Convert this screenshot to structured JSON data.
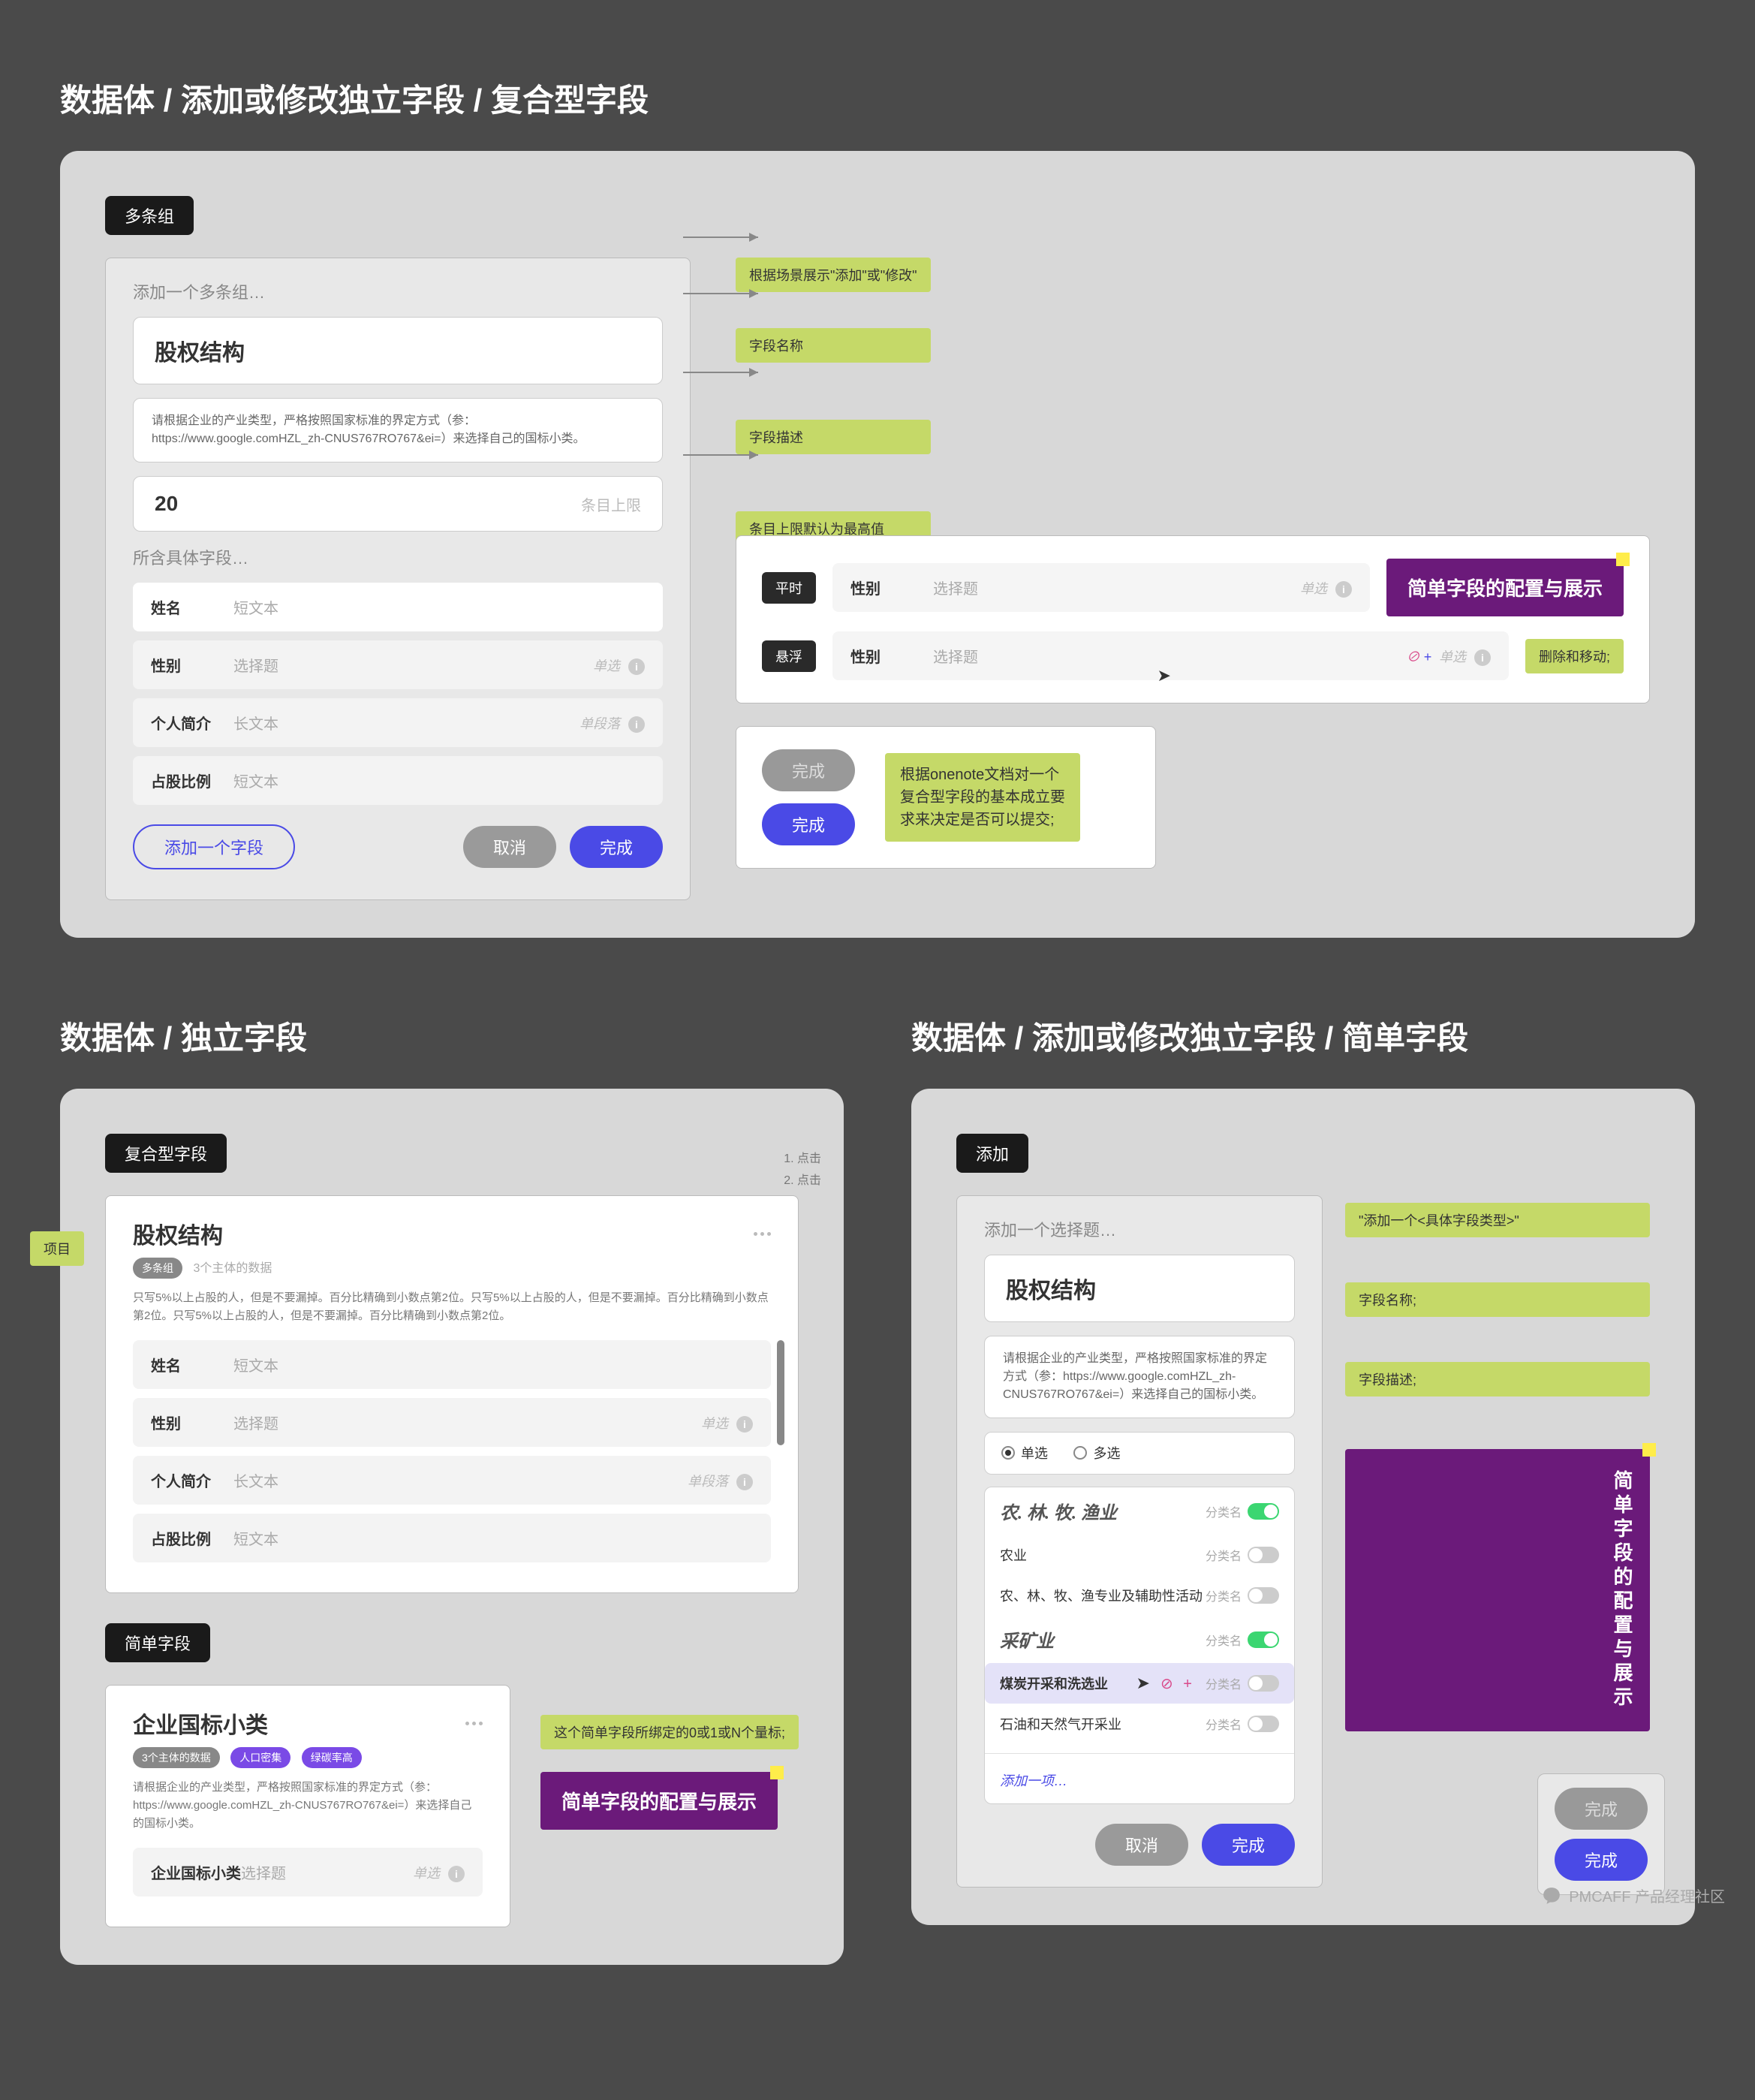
{
  "colors": {
    "bg": "#4a4a4a",
    "panel": "#d8d8d8",
    "accent": "#4a4ae6",
    "annot": "#c5d968",
    "purple": "#6b1a7a",
    "green": "#3bd671"
  },
  "footer": "PMCAFF 产品经理社区",
  "section1": {
    "title": "数据体 / 添加或修改独立字段 / 复合型字段",
    "chip": "多条组",
    "crumb": "添加一个多条组…",
    "name": "股权结构",
    "desc": "请根据企业的产业类型，严格按照国家标准的界定方式（参：https://www.google.comHZL_zh-CNUS767RO767&ei=）来选择自己的国标小类。",
    "limitValue": "20",
    "limitHint": "条目上限",
    "ann_crumb": "根据场景展示\"添加\"或\"修改\"",
    "ann_name": "字段名称",
    "ann_desc": "字段描述",
    "ann_limit": "条目上限默认为最高值",
    "subLabel": "所含具体字段…",
    "fields": [
      {
        "name": "姓名",
        "type": "短文本",
        "sel": true,
        "tag": ""
      },
      {
        "name": "性别",
        "type": "选择题",
        "tag": "单选"
      },
      {
        "name": "个人简介",
        "type": "长文本",
        "tag": "单段落"
      },
      {
        "name": "占股比例",
        "type": "短文本",
        "tag": ""
      }
    ],
    "addFieldBtn": "添加一个字段",
    "cancelBtn": "取消",
    "doneBtn": "完成",
    "stateNormal": "平时",
    "stateHover": "悬浮",
    "rightFieldName": "性别",
    "rightFieldType": "选择题",
    "rightTag": "单选",
    "purpleLabel": "简单字段的配置与展示",
    "annDelete": "删除和移动;",
    "doneDisabled": "完成",
    "doneEnabled": "完成",
    "annDone": "根据onenote文档对一个复合型字段的基本成立要求来决定是否可以提交;"
  },
  "section2": {
    "title": "数据体 / 独立字段",
    "chip1": "复合型字段",
    "cardTitle1": "股权结构",
    "pill1": "多条组",
    "pill1b": "3个主体的数据",
    "cardDesc1": "只写5%以上占股的人，但是不要漏掉。百分比精确到小数点第2位。只写5%以上占股的人，但是不要漏掉。百分比精确到小数点第2位。只写5%以上占股的人，但是不要漏掉。百分比精确到小数点第2位。",
    "fields": [
      {
        "name": "姓名",
        "type": "短文本",
        "tag": ""
      },
      {
        "name": "性别",
        "type": "选择题",
        "tag": "单选"
      },
      {
        "name": "个人简介",
        "type": "长文本",
        "tag": "单段落"
      },
      {
        "name": "占股比例",
        "type": "短文本",
        "tag": ""
      }
    ],
    "annEdge": "项目",
    "annSide1": "1. 点击",
    "annSide2": "2. 点击",
    "chip2": "简单字段",
    "cardTitle2": "企业国标小类",
    "pill2a": "3个主体的数据",
    "pill2b": "人口密集",
    "pill2c": "绿碳率高",
    "cardDesc2": "请根据企业的产业类型，严格按照国家标准的界定方式（参：https://www.google.comHZL_zh-CNUS767RO767&ei=）来选择自己的国标小类。",
    "field2": {
      "name": "企业国标小类",
      "type": "选择题",
      "tag": "单选"
    },
    "ann2": "这个简单字段所绑定的0或1或N个量标;",
    "purple2": "简单字段的配置与展示"
  },
  "section3": {
    "title": "数据体 / 添加或修改独立字段 / 简单字段",
    "chip": "添加",
    "crumb": "添加一个选择题…",
    "name": "股权结构",
    "desc": "请根据企业的产业类型，严格按照国家标准的界定方式（参：https://www.google.comHZL_zh-CNUS767RO767&ei=）来选择自己的国标小类。",
    "annCrumb": "\"添加一个<具体字段类型>\"",
    "annName": "字段名称;",
    "annDesc": "字段描述;",
    "radioSingle": "单选",
    "radioMulti": "多选",
    "cat1": "农. 林. 牧. 渔业",
    "catToggle": "分类名",
    "opts": [
      {
        "label": "农业",
        "on": false
      },
      {
        "label": "农、林、牧、渔专业及辅助性活动",
        "on": false
      }
    ],
    "cat2": "采矿业",
    "optHover": {
      "label": "煤炭开采和洗选业",
      "on": false
    },
    "opt4": {
      "label": "石油和天然气开采业",
      "on": false
    },
    "addLink": "添加一项…",
    "cancelBtn": "取消",
    "doneBtn": "完成",
    "doneDisabled": "完成",
    "doneEnabled": "完成",
    "purpleV": "简单字段的配置与展示"
  }
}
